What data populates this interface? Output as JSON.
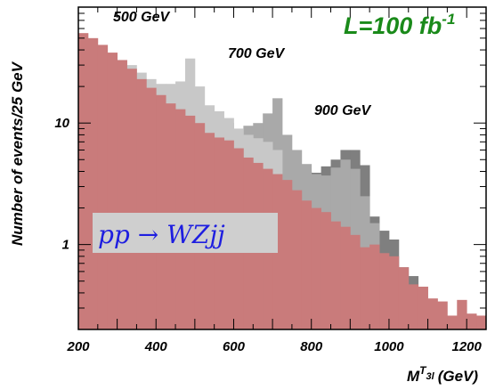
{
  "chart_data": {
    "type": "histogram",
    "xlabel": "M",
    "xlabel_sup": "T",
    "xlabel_sub": "3l",
    "xlabel_unit": "(GeV)",
    "ylabel": "Number of events/25 GeV",
    "xlim": [
      200,
      1250
    ],
    "ylim": [
      0.2,
      90
    ],
    "yscale": "log",
    "bin_width": 25,
    "x_ticks": [
      200,
      400,
      600,
      800,
      1000,
      1200
    ],
    "x_tick_labels": [
      "200",
      "400",
      "600",
      "800",
      "1000",
      "1200"
    ],
    "y_ticks": [
      1,
      10
    ],
    "y_tick_labels": [
      "1",
      "10"
    ],
    "grid": false,
    "colors": {
      "background": "#c97b7b",
      "signal_500": "#c8c8c8",
      "signal_700": "#a9a9a9",
      "signal_900": "#7f7f7f",
      "axis": "#000000",
      "lumi": "#1a8a1a",
      "process_text": "#1e1ee0",
      "process_box": "#cfcfcf"
    },
    "annotations": {
      "peak_500": "500 GeV",
      "peak_700": "700 GeV",
      "peak_900": "900 GeV",
      "lumi_main": "L=100 fb",
      "lumi_exp": "-1",
      "process": "pp → WZjj"
    },
    "series": [
      {
        "name": "background",
        "x": [
          200,
          225,
          250,
          275,
          300,
          325,
          350,
          375,
          400,
          425,
          450,
          475,
          500,
          525,
          550,
          575,
          600,
          625,
          650,
          675,
          700,
          725,
          750,
          775,
          800,
          825,
          850,
          875,
          900,
          925,
          950,
          975,
          1000,
          1025,
          1050,
          1075,
          1100,
          1125,
          1150,
          1175,
          1200,
          1225
        ],
        "values": [
          55,
          50,
          44,
          38,
          33,
          28,
          23,
          19.5,
          17,
          14.5,
          13,
          11.5,
          10,
          8.3,
          7.6,
          7.2,
          6.2,
          5.2,
          4.7,
          4.2,
          3.8,
          3.4,
          2.8,
          2.3,
          2.0,
          1.85,
          1.55,
          1.4,
          1.2,
          0.95,
          1.0,
          0.85,
          0.8,
          0.65,
          0.47,
          0.45,
          0.36,
          0.34,
          0.26,
          0.35,
          0.27,
          0.26
        ]
      },
      {
        "name": "signal_500",
        "x": [
          300,
          325,
          350,
          375,
          400,
          425,
          450,
          475,
          500,
          525,
          550,
          575,
          600,
          625,
          650,
          675,
          700
        ],
        "values": [
          33,
          30,
          26,
          23,
          21,
          21,
          22,
          34,
          20,
          14,
          12.5,
          11,
          9,
          8,
          7.5,
          7,
          6
        ]
      },
      {
        "name": "signal_700",
        "x": [
          500,
          525,
          550,
          575,
          600,
          625,
          650,
          675,
          700,
          725,
          750,
          775,
          800,
          825,
          850,
          875,
          900,
          925,
          950
        ],
        "values": [
          12,
          10.5,
          10.5,
          10,
          8.5,
          9.5,
          10,
          12,
          16,
          8,
          6,
          4.6,
          3.8,
          3.7,
          4.3,
          5.0,
          4.2,
          2.5,
          1.5
        ]
      },
      {
        "name": "signal_900",
        "x": [
          725,
          750,
          775,
          800,
          825,
          850,
          875,
          900,
          925,
          950,
          975,
          1000,
          1025,
          1050
        ],
        "values": [
          4.1,
          4.1,
          4.0,
          3.9,
          4.4,
          5.0,
          6.0,
          6.0,
          4.5,
          1.7,
          1.3,
          1.1,
          0.65,
          0.55
        ]
      }
    ]
  }
}
